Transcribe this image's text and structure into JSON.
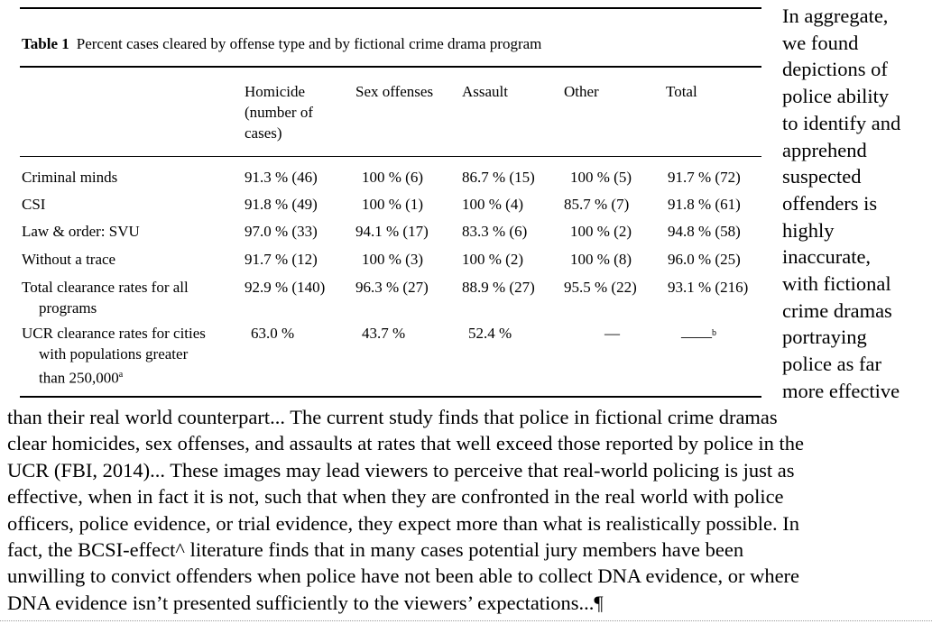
{
  "table": {
    "caption_label": "Table 1",
    "caption_text": "Percent cases cleared by offense type and by fictional crime drama program",
    "headers": {
      "homicide": "Homicide (number of cases)",
      "sex": "Sex offenses",
      "assault": "Assault",
      "other": "Other",
      "total": "Total"
    },
    "rows": [
      {
        "label": "Criminal minds",
        "homicide": "91.3 % (46)",
        "sex": "100 % (6)",
        "assault": "86.7 % (15)",
        "other": "100 % (5)",
        "total": "91.7 % (72)"
      },
      {
        "label": "CSI",
        "homicide": "91.8 % (49)",
        "sex": "100 % (1)",
        "assault": "100 % (4)",
        "other": "85.7 % (7)",
        "total": "91.8 % (61)"
      },
      {
        "label": "Law & order: SVU",
        "homicide": "97.0 % (33)",
        "sex": "94.1 % (17)",
        "assault": "83.3 % (6)",
        "other": "100 % (2)",
        "total": "94.8 % (58)"
      },
      {
        "label": "Without a trace",
        "homicide": "91.7 % (12)",
        "sex": "100 % (3)",
        "assault": "100 % (2)",
        "other": "100 % (8)",
        "total": "96.0 % (25)"
      },
      {
        "label_line1": "Total clearance rates for all",
        "label_line2": "programs",
        "homicide": "92.9 % (140)",
        "sex": "96.3 % (27)",
        "assault": "88.9 % (27)",
        "other": "95.5 % (22)",
        "total": "93.1 % (216)"
      },
      {
        "label_line1": "UCR clearance rates for cities",
        "label_line2": "with populations greater",
        "label_line3": "than 250,000",
        "label_sup": "a",
        "homicide": "63.0 %",
        "sex": "43.7 %",
        "assault": "52.4 %",
        "other": "—",
        "total": "——",
        "total_sup": "b"
      }
    ]
  },
  "side_text_lines": [
    "In aggregate,",
    "we found",
    "depictions of",
    "police ability",
    "to identify and",
    "apprehend",
    "suspected",
    "offenders is",
    "highly",
    "inaccurate,",
    "with fictional",
    "crime dramas",
    "portraying",
    "police as far",
    "more effective"
  ],
  "body_lines": [
    "than their real world counterpart... The current study finds that police in fictional crime dramas",
    "clear homicides, sex offenses, and assaults at rates that well exceed those reported by police in the",
    "UCR (FBI, 2014)...  These images may lead viewers to perceive that real-world policing is just as",
    "effective, when in fact it is not, such that when they are confronted in the real world with police",
    "officers, police evidence, or trial evidence, they expect more than what is realistically possible. In",
    "fact, the BCSI-effect^ literature finds that in many cases potential jury members have been",
    "unwilling to convict offenders when police have not been able to collect DNA evidence, or where",
    "DNA evidence isn’t presented sufficiently to the viewers’ expectations...¶"
  ]
}
